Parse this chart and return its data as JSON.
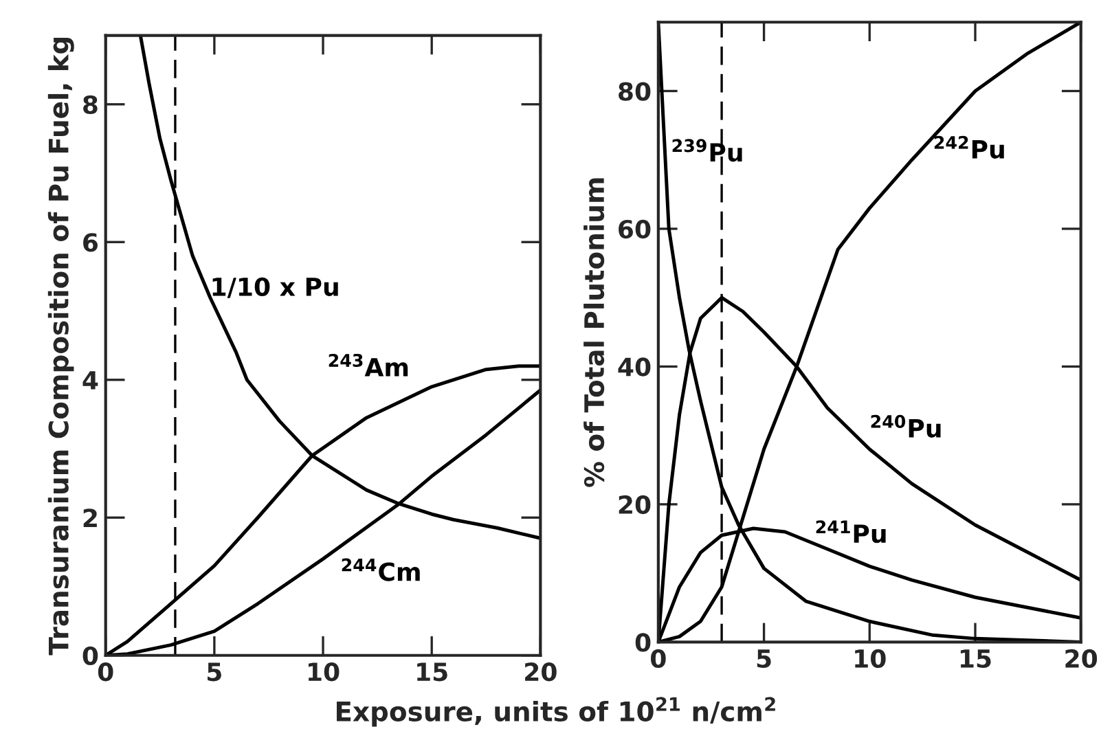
{
  "chart_data": [
    {
      "type": "line",
      "ylabel": "Transuranium Composition of Pu Fuel, kg",
      "xlabel": "Exposure, units of 10$^{21}$ n/cm$^{2}$",
      "xlim": [
        0,
        20
      ],
      "ylim": [
        0,
        9
      ],
      "xticks": [
        0,
        5,
        10,
        15,
        20
      ],
      "yticks": [
        0,
        2,
        4,
        6,
        8
      ],
      "grid": false,
      "legend": false,
      "ref_lines": [
        {
          "axis": "x",
          "value": 3.2,
          "line_style": "dashed",
          "color": "#000000"
        }
      ],
      "series": [
        {
          "name": "1/10 x Pu",
          "color": "#000000",
          "x": [
            1.6,
            2,
            2.5,
            3,
            4,
            4.8,
            6,
            6.5,
            7,
            8,
            9.5,
            11,
            12,
            13.5,
            15,
            16,
            18,
            20
          ],
          "values": [
            9,
            8.3,
            7.5,
            6.9,
            5.8,
            5.2,
            4.4,
            4.0,
            3.8,
            3.4,
            2.9,
            2.6,
            2.4,
            2.2,
            2.05,
            1.97,
            1.85,
            1.7
          ]
        },
        {
          "name": "$^{243}$Am",
          "color": "#000000",
          "x": [
            0,
            1,
            3,
            5,
            7,
            9.5,
            12,
            15,
            17.5,
            19,
            20
          ],
          "values": [
            0,
            0.2,
            0.75,
            1.3,
            2.0,
            2.9,
            3.45,
            3.9,
            4.15,
            4.2,
            4.2
          ]
        },
        {
          "name": "$^{244}$Cm",
          "color": "#000000",
          "x": [
            0,
            1,
            3,
            5,
            7,
            10,
            13.5,
            15,
            17.5,
            20
          ],
          "values": [
            0,
            0.02,
            0.15,
            0.35,
            0.75,
            1.4,
            2.2,
            2.6,
            3.2,
            3.85
          ]
        }
      ]
    },
    {
      "type": "line",
      "ylabel": "% of Total Plutonium",
      "xlim": [
        0,
        20
      ],
      "ylim": [
        0,
        90
      ],
      "xticks": [
        0,
        5,
        10,
        15,
        20
      ],
      "yticks": [
        0,
        20,
        40,
        60,
        80
      ],
      "grid": false,
      "legend": false,
      "ref_lines": [
        {
          "axis": "x",
          "value": 3,
          "line_style": "dashed",
          "color": "#000000"
        }
      ],
      "series": [
        {
          "name": "$^{239}$Pu",
          "color": "#000000",
          "x": [
            0,
            0.25,
            0.5,
            1,
            1.45,
            2,
            3,
            3.8,
            5,
            7,
            10,
            13,
            15,
            20
          ],
          "values": [
            90,
            75,
            60,
            50,
            42.5,
            35,
            22.5,
            17,
            10.7,
            5.9,
            3,
            1,
            0.5,
            0
          ]
        },
        {
          "name": "$^{240}$Pu",
          "color": "#000000",
          "x": [
            0,
            0.5,
            1,
            1.5,
            2,
            3,
            4,
            5,
            6.55,
            8,
            10,
            12,
            15,
            17.5,
            20
          ],
          "values": [
            0,
            20,
            33,
            42,
            47,
            50,
            48,
            45,
            40,
            34,
            28,
            23,
            17,
            13,
            9
          ]
        },
        {
          "name": "$^{241}$Pu",
          "color": "#000000",
          "x": [
            0,
            1,
            2,
            3,
            4.5,
            6,
            8,
            10,
            12,
            15,
            17.5,
            20
          ],
          "values": [
            0,
            8,
            13,
            15.5,
            16.5,
            16,
            13.5,
            11,
            9,
            6.5,
            5,
            3.5
          ]
        },
        {
          "name": "$^{242}$Pu",
          "color": "#000000",
          "x": [
            0,
            1,
            2,
            3,
            3.8,
            5,
            6.55,
            8.5,
            10,
            12,
            15,
            17.5,
            20
          ],
          "values": [
            0,
            0.8,
            3,
            8,
            16,
            28,
            40,
            57,
            63,
            70,
            80,
            85.5,
            90
          ]
        }
      ]
    }
  ]
}
